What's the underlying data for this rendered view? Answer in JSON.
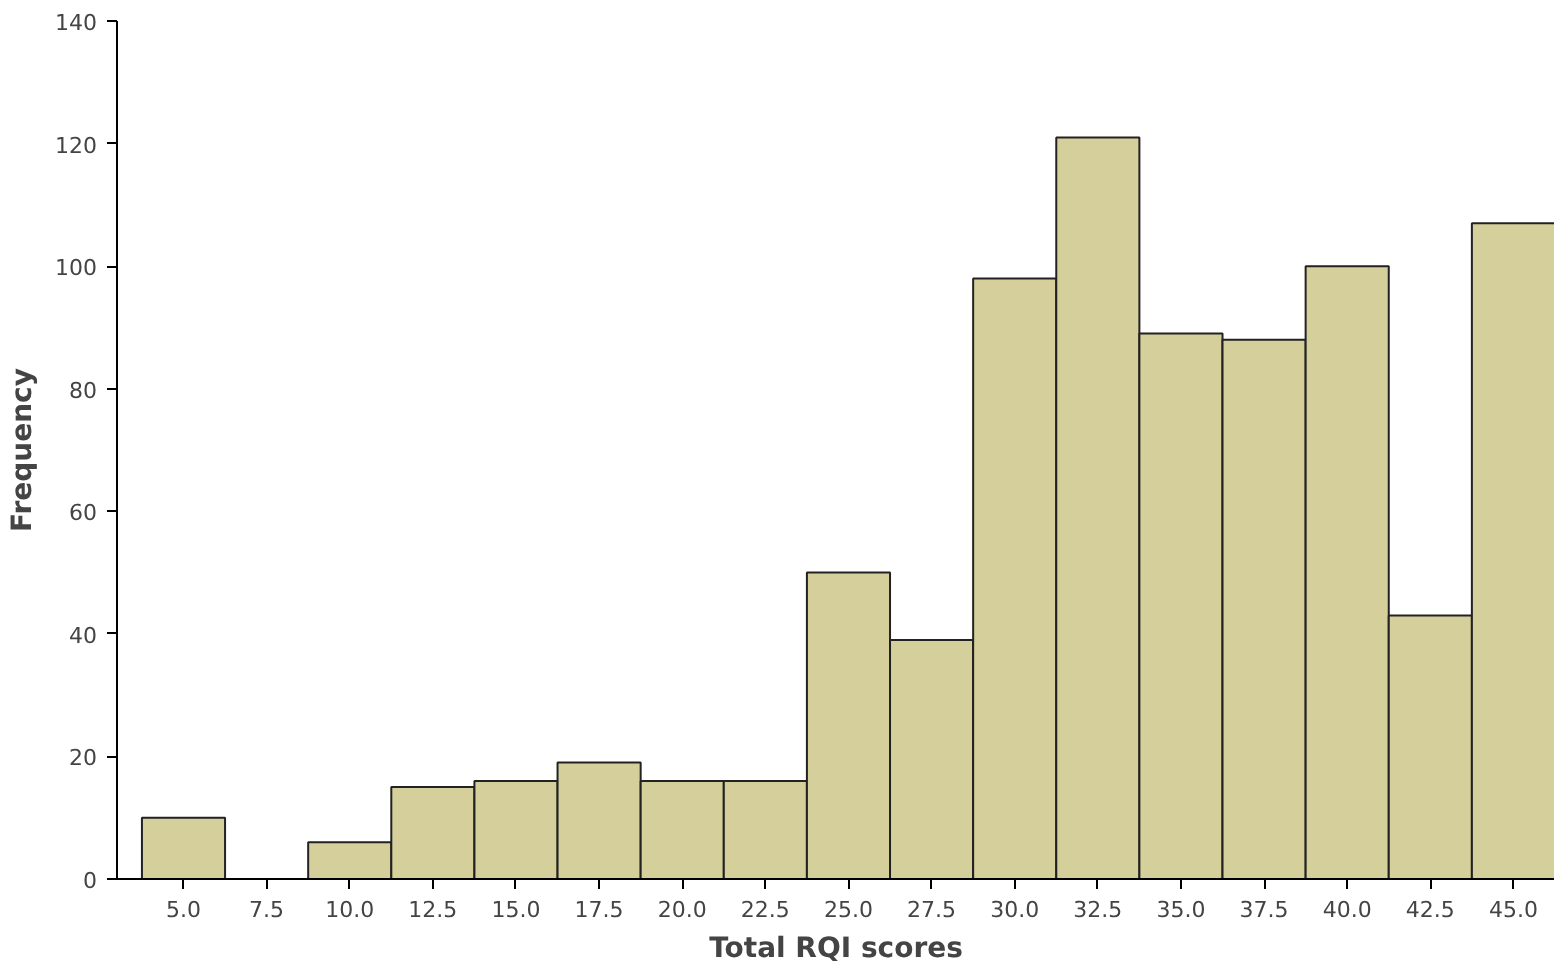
{
  "chart_data": {
    "type": "histogram",
    "xlabel": "Total RQI scores",
    "ylabel": "Frequency",
    "bins": [
      3.75,
      6.25,
      8.75,
      11.25,
      13.75,
      16.25,
      18.75,
      21.25,
      23.75,
      26.25,
      28.75,
      31.25,
      33.75,
      36.25,
      38.75,
      41.25,
      43.75,
      46.25
    ],
    "values": [
      10,
      0,
      6,
      15,
      16,
      19,
      16,
      16,
      50,
      39,
      98,
      121,
      89,
      88,
      100,
      43,
      107
    ],
    "color": "#d4cf9b",
    "xlim": [
      3,
      46.25
    ],
    "xticks": [
      {
        "value": 5,
        "label": "5.0"
      },
      {
        "value": 7.5,
        "label": "7.5"
      },
      {
        "value": 10,
        "label": "10.0"
      },
      {
        "value": 12.5,
        "label": "12.5"
      },
      {
        "value": 15,
        "label": "15.0"
      },
      {
        "value": 17.5,
        "label": "17.5"
      },
      {
        "value": 20,
        "label": "20.0"
      },
      {
        "value": 22.5,
        "label": "22.5"
      },
      {
        "value": 25,
        "label": "25.0"
      },
      {
        "value": 27.5,
        "label": "27.5"
      },
      {
        "value": 30,
        "label": "30.0"
      },
      {
        "value": 32.5,
        "label": "32.5"
      },
      {
        "value": 35,
        "label": "35.0"
      },
      {
        "value": 37.5,
        "label": "37.5"
      },
      {
        "value": 40,
        "label": "40.0"
      },
      {
        "value": 42.5,
        "label": "42.5"
      },
      {
        "value": 45,
        "label": "45.0"
      }
    ],
    "ylim": [
      0,
      140
    ],
    "yticks": [
      0,
      20,
      40,
      60,
      80,
      100,
      120,
      140
    ],
    "grid": false
  }
}
